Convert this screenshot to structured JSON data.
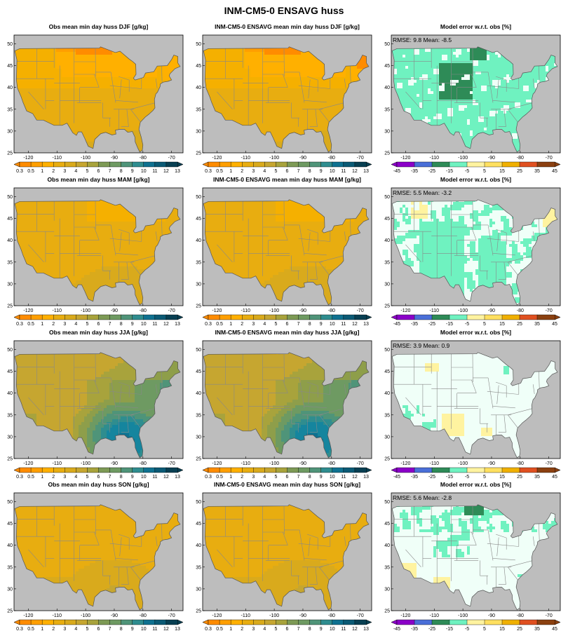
{
  "suptitle": "INM-CM5-0 ENSAVG huss",
  "colors": {
    "ocean": "#bdbdbd",
    "state_lines": "#888888",
    "huss_scale": [
      "#ff8c00",
      "#ff9f00",
      "#ffb000",
      "#f5b000",
      "#e8ad10",
      "#d9aa1c",
      "#c6a630",
      "#a8a33c",
      "#8e9e4a",
      "#7d9a55",
      "#6e9a62",
      "#4f9479",
      "#2f8d8f",
      "#15859e",
      "#0f7190",
      "#0b5a75",
      "#083f52"
    ],
    "err_scale": [
      "#8b00c8",
      "#4a6fd8",
      "#2e8b57",
      "#6ff2c0",
      "#f0fff8",
      "#fff3a0",
      "#ffe060",
      "#f0b000",
      "#e05020",
      "#8b4010"
    ]
  },
  "colorbars": {
    "huss": {
      "ticks": [
        "0.3",
        "0.5",
        "1",
        "2",
        "3",
        "4",
        "5",
        "6",
        "7",
        "8",
        "9",
        "10",
        "11",
        "12",
        "13"
      ]
    },
    "err": {
      "ticks": [
        "-45",
        "-35",
        "-25",
        "-15",
        "-5",
        "5",
        "15",
        "25",
        "35",
        "45"
      ]
    }
  },
  "axes": {
    "lon_ticks": [
      "-120",
      "-110",
      "-100",
      "-90",
      "-80",
      "-70"
    ],
    "lat_ticks": [
      "25",
      "30",
      "35",
      "40",
      "45",
      "50"
    ],
    "lon_range": [
      -125,
      -66
    ],
    "lat_range": [
      25,
      52
    ]
  },
  "chart_data": [
    {
      "type": "heatmap",
      "season": "DJF",
      "kind": "obs",
      "title": "Obs mean min day  huss DJF [g/kg]",
      "dominant_value_g_kg": 3,
      "colorbar": "huss"
    },
    {
      "type": "heatmap",
      "season": "DJF",
      "kind": "model",
      "title": "INM-CM5-0 ENSAVG mean min day huss DJF [g/kg]",
      "dominant_value_g_kg": 3,
      "colorbar": "huss"
    },
    {
      "type": "heatmap",
      "season": "DJF",
      "kind": "error",
      "title": "Model error w.r.t. obs [%]",
      "rmse": "9.8",
      "mean": "-8.5",
      "stats_text": "RMSE: 9.8   Mean: -8.5",
      "colorbar": "err"
    },
    {
      "type": "heatmap",
      "season": "MAM",
      "kind": "obs",
      "title": "Obs mean min day  huss MAM [g/kg]",
      "dominant_value_g_kg": 2,
      "colorbar": "huss"
    },
    {
      "type": "heatmap",
      "season": "MAM",
      "kind": "model",
      "title": "INM-CM5-0 ENSAVG mean min day huss MAM [g/kg]",
      "dominant_value_g_kg": 2,
      "colorbar": "huss"
    },
    {
      "type": "heatmap",
      "season": "MAM",
      "kind": "error",
      "title": "Model error w.r.t. obs [%]",
      "rmse": "5.5",
      "mean": "-3.2",
      "stats_text": "RMSE: 5.5   Mean: -3.2",
      "colorbar": "err"
    },
    {
      "type": "heatmap",
      "season": "JJA",
      "kind": "obs",
      "title": "Obs mean min day  huss JJA [g/kg]",
      "dominant_value_g_kg": 6,
      "colorbar": "huss"
    },
    {
      "type": "heatmap",
      "season": "JJA",
      "kind": "model",
      "title": "INM-CM5-0 ENSAVG mean min day huss JJA [g/kg]",
      "dominant_value_g_kg": 6,
      "colorbar": "huss"
    },
    {
      "type": "heatmap",
      "season": "JJA",
      "kind": "error",
      "title": "Model error w.r.t. obs [%]",
      "rmse": "3.9",
      "mean": "0.9",
      "stats_text": "RMSE: 3.9   Mean: 0.9",
      "colorbar": "err"
    },
    {
      "type": "heatmap",
      "season": "SON",
      "kind": "obs",
      "title": "Obs mean min day  huss SON [g/kg]",
      "dominant_value_g_kg": 3,
      "colorbar": "huss"
    },
    {
      "type": "heatmap",
      "season": "SON",
      "kind": "model",
      "title": "INM-CM5-0 ENSAVG mean min day huss SON [g/kg]",
      "dominant_value_g_kg": 3,
      "colorbar": "huss"
    },
    {
      "type": "heatmap",
      "season": "SON",
      "kind": "error",
      "title": "Model error w.r.t. obs [%]",
      "rmse": "5.6",
      "mean": "-2.8",
      "stats_text": "RMSE: 5.6   Mean: -2.8",
      "colorbar": "err"
    }
  ]
}
